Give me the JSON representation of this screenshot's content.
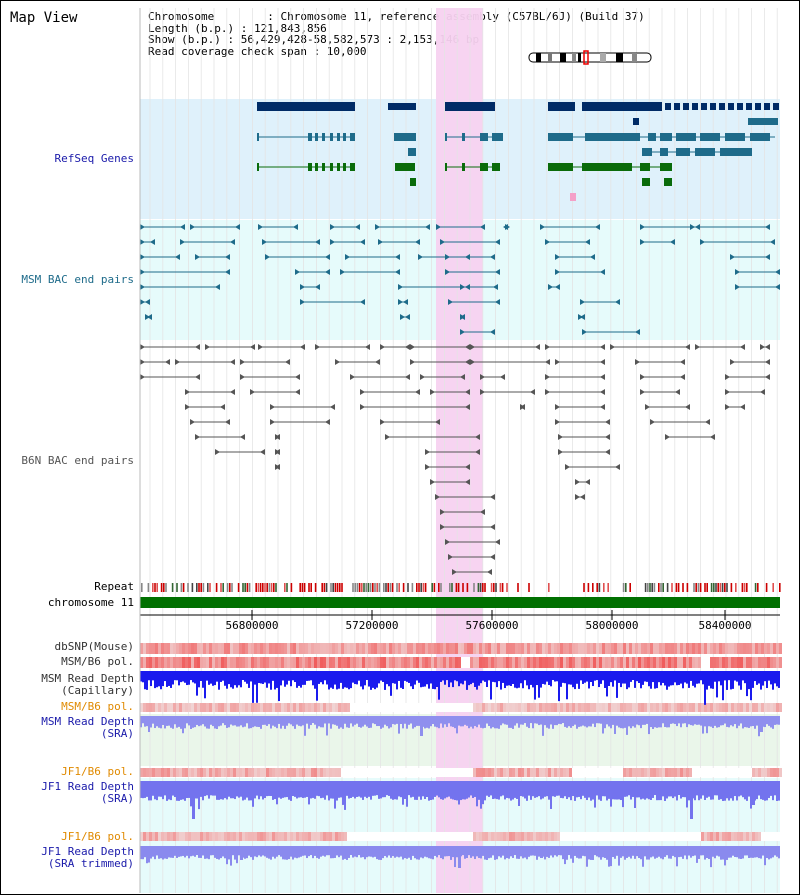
{
  "title": "Map View",
  "info": {
    "chromosome": "Chromosome        : Chromosome 11, reference assembly (C57BL/6J) (Build 37)",
    "length": "Length (b.p.) : 121,843,856",
    "show": "Show (b.p.) : 56,429,428-58,582,573 : 2,153,146 bp",
    "coverage": "Read coverage check span : 10,000"
  },
  "tracks": {
    "refseq": "RefSeq Genes",
    "msm_bac": "MSM BAC end pairs",
    "b6n_bac": "B6N BAC end pairs",
    "repeat": "Repeat",
    "chromosome": "chromosome 11",
    "dbsnp": "dbSNP(Mouse)",
    "msm_b6_pol": "MSM/B6 pol.",
    "msm_rd_cap_1": "MSM Read Depth",
    "msm_rd_cap_2": "(Capillary)",
    "msm_b6_pol2": "MSM/B6 pol.",
    "msm_rd_sra_1": "MSM Read Depth",
    "msm_rd_sra_2": "(SRA)",
    "jf1_pol": "JF1/B6 pol.",
    "jf1_rd_1": "JF1 Read Depth",
    "jf1_rd_2": "(SRA)",
    "jf1_pol2": "JF1/B6 pol.",
    "jf1_rdt_1": "JF1 Read Depth",
    "jf1_rdt_2": "(SRA trimmed)"
  },
  "axis_ticks": [
    "56800000",
    "57200000",
    "57600000",
    "58000000",
    "58400000"
  ],
  "colors": {
    "refseq_bg": "#dff1fb",
    "msm_bac_bg": "#e6fbfb",
    "highlight": "#f7d2f0",
    "navy": "#002b66",
    "teal": "#1e6b8a",
    "green": "#0a6b0a",
    "chromosome": "#007000",
    "depth_blue": "#1a1aee",
    "label_blue": "#1a1aaa",
    "label_orange": "#e08a00"
  }
}
